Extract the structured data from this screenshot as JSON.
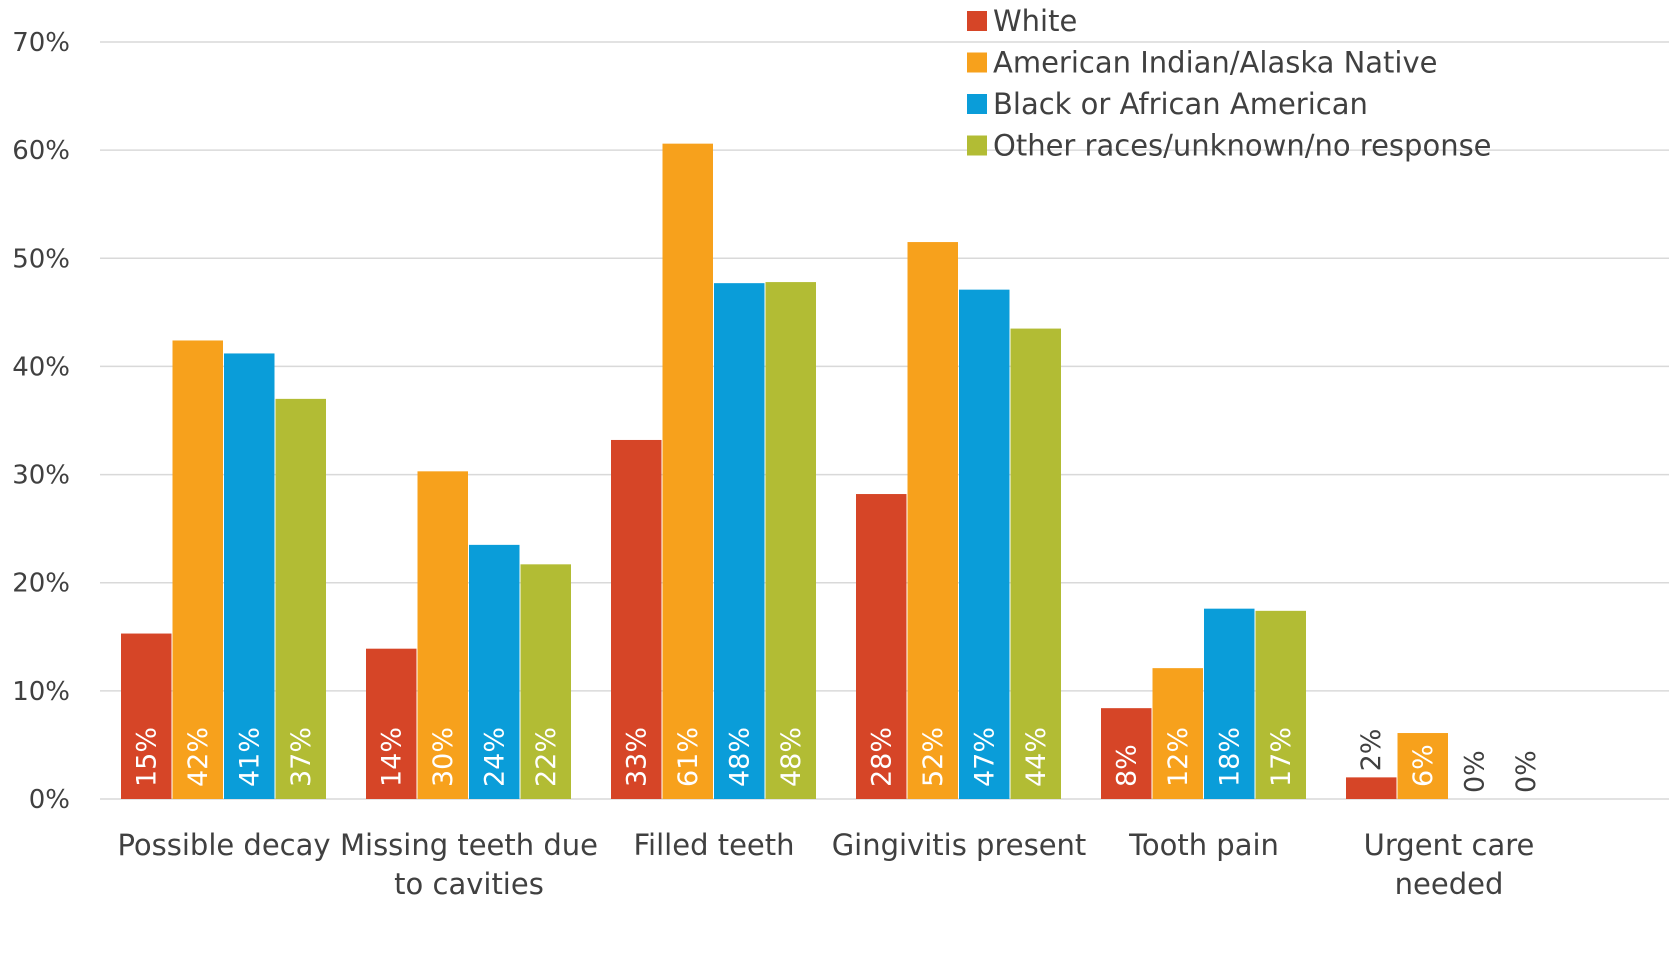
{
  "chart_data": {
    "type": "bar",
    "categories": [
      [
        "Possible decay"
      ],
      [
        "Missing teeth due",
        "to cavities"
      ],
      [
        "Filled teeth"
      ],
      [
        "Gingivitis present"
      ],
      [
        "Tooth pain"
      ],
      [
        "Urgent care",
        "needed"
      ]
    ],
    "series": [
      {
        "name": "White",
        "color": "#d64527",
        "values": [
          15.3,
          13.9,
          33.2,
          28.2,
          8.4,
          2.0
        ],
        "labels": [
          "15%",
          "14%",
          "33%",
          "28%",
          "8%",
          "2%"
        ]
      },
      {
        "name": "American Indian/Alaska Native",
        "color": "#f7a11c",
        "values": [
          42.4,
          30.3,
          60.6,
          51.5,
          12.1,
          6.1
        ],
        "labels": [
          "42%",
          "30%",
          "61%",
          "52%",
          "12%",
          "6%"
        ]
      },
      {
        "name": "Black or African American",
        "color": "#0a9dd9",
        "values": [
          41.2,
          23.5,
          47.7,
          47.1,
          17.6,
          0
        ],
        "labels": [
          "41%",
          "24%",
          "48%",
          "47%",
          "18%",
          "0%"
        ]
      },
      {
        "name": "Other races/unknown/no response",
        "color": "#b2bc34",
        "values": [
          37.0,
          21.7,
          47.8,
          43.5,
          17.4,
          0
        ],
        "labels": [
          "37%",
          "22%",
          "48%",
          "44%",
          "17%",
          "0%"
        ]
      }
    ],
    "y_ticks": [
      "0%",
      "10%",
      "20%",
      "30%",
      "40%",
      "50%",
      "60%",
      "70%"
    ],
    "ylim": [
      0,
      70
    ],
    "ylabel": "",
    "xlabel": "",
    "grid": true,
    "legend_position": "top-right",
    "gridline_color": "#d9d9d9",
    "data_label_color_inside": "#ffffff",
    "data_label_color_outside": "#404040"
  }
}
